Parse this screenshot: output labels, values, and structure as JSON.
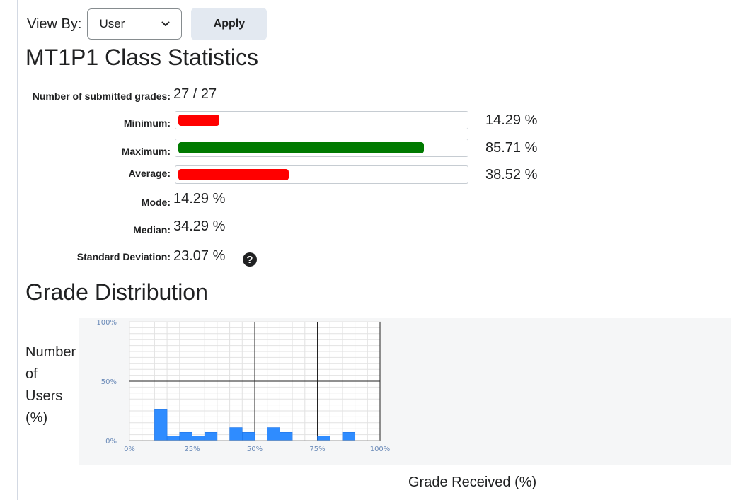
{
  "view_by": {
    "label": "View By:",
    "selected": "User",
    "apply_label": "Apply"
  },
  "title": "MT1P1 Class Statistics",
  "stats": {
    "submitted_label": "Number of submitted grades:",
    "submitted_value": "27 / 27",
    "minimum_label": "Minimum:",
    "minimum_value": "14.29 %",
    "minimum_fraction": 0.1429,
    "maximum_label": "Maximum:",
    "maximum_value": "85.71 %",
    "maximum_fraction": 0.8571,
    "average_label": "Average:",
    "average_value": "38.52 %",
    "average_fraction": 0.3852,
    "mode_label": "Mode:",
    "mode_value": "14.29 %",
    "median_label": "Median:",
    "median_value": "34.29 %",
    "stddev_label": "Standard Deviation:",
    "stddev_value": "23.07 %",
    "help_glyph": "?"
  },
  "colors": {
    "bar_red": "#ff0000",
    "bar_green": "#007a00",
    "hist_blue": "#2f8cff"
  },
  "distribution": {
    "heading": "Grade Distribution",
    "y_title": [
      "Number",
      "of",
      "Users",
      "(%)"
    ],
    "x_title": "Grade Received (%)"
  },
  "chart_data": {
    "type": "bar",
    "x_ticks": [
      "0%",
      "25%",
      "50%",
      "75%",
      "100%"
    ],
    "y_ticks": [
      "0%",
      "50%",
      "100%"
    ],
    "ylim": [
      0,
      100
    ],
    "xlim": [
      0,
      100
    ],
    "grid": true,
    "bin_width": 5,
    "bins": [
      {
        "x": 10,
        "value": 26
      },
      {
        "x": 15,
        "value": 4
      },
      {
        "x": 20,
        "value": 7
      },
      {
        "x": 25,
        "value": 4
      },
      {
        "x": 30,
        "value": 7
      },
      {
        "x": 40,
        "value": 11
      },
      {
        "x": 45,
        "value": 7
      },
      {
        "x": 55,
        "value": 11
      },
      {
        "x": 60,
        "value": 7
      },
      {
        "x": 75,
        "value": 4
      },
      {
        "x": 85,
        "value": 7
      }
    ]
  }
}
